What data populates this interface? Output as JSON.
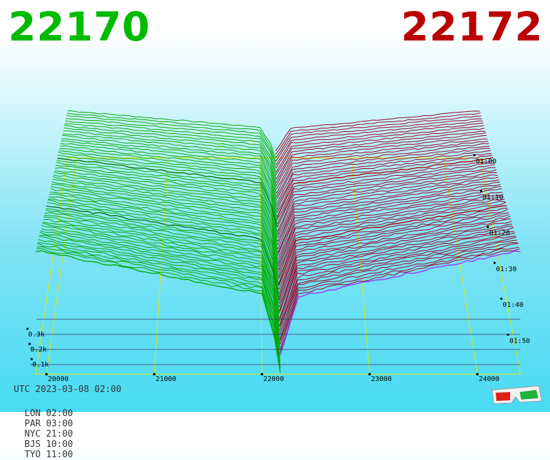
{
  "header": {
    "bid_price": "22170",
    "ask_price": "22172",
    "bid_color": "#00bb00",
    "ask_color": "#bb0000"
  },
  "footer": {
    "utc_label": "UTC 2023-03-08 02:00",
    "zones": [
      {
        "label": "LON 02:00"
      },
      {
        "label": "PAR 03:00"
      },
      {
        "label": "NYC 21:00"
      },
      {
        "label": "BJS 10:00"
      },
      {
        "label": "TYO 11:00"
      }
    ]
  },
  "icons": {
    "glasses": "anaglyph-3d-glasses-icon"
  },
  "chart_data": {
    "type": "area",
    "title": "",
    "x_ticks": [
      "20000",
      "21000",
      "22000",
      "23000",
      "24000"
    ],
    "x_range": [
      19900,
      24400
    ],
    "depth_ticks": [
      "0.1k",
      "0.2k",
      "0.3k"
    ],
    "time_ticks": [
      "01:00",
      "01:10",
      "01:20",
      "01:30",
      "01:40",
      "01:50"
    ],
    "bid_color": "#00aa00",
    "ask_color": "#990022",
    "mid_price": 22171,
    "snapshots": 60
  }
}
